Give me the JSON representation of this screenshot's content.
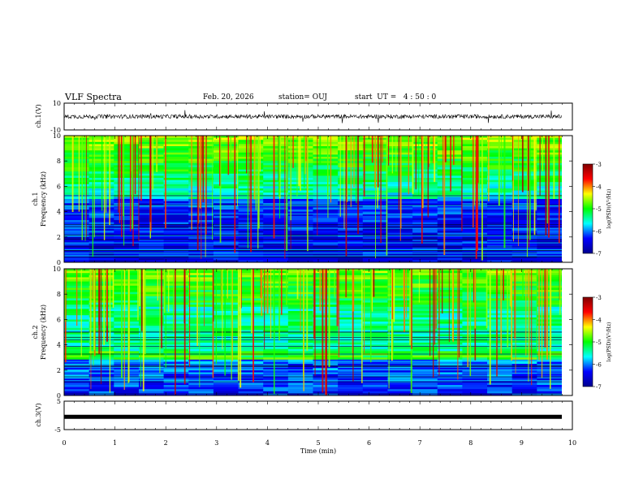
{
  "header": {
    "title": "VLF Spectra",
    "date": "Feb. 20, 2026",
    "station": "station= OUJ",
    "start": "start  UT =   4 : 50 : 0"
  },
  "chart_data": [
    {
      "type": "line",
      "name": "ch.1(V) waveform",
      "ylabel": "ch.1(V)",
      "ylim": [
        -10,
        10
      ],
      "yticks": [
        "10",
        "-10"
      ],
      "description_values": {
        "baseline": 0,
        "noise_amplitude": 1.5
      }
    },
    {
      "type": "heatmap",
      "name": "ch.1 spectrogram",
      "ylabel_top": "ch.1",
      "ylabel": "Frequency  (kHz)",
      "ylim": [
        0,
        10
      ],
      "yticks": [
        "0",
        "2",
        "4",
        "6",
        "8",
        "10"
      ],
      "colorbar": {
        "label": "log(PSD)(V²/Hz)",
        "range": [
          -7,
          -3
        ],
        "ticks": [
          "-3",
          "-4",
          "-5",
          "-6",
          "-7"
        ]
      }
    },
    {
      "type": "heatmap",
      "name": "ch.2 spectrogram",
      "ylabel_top": "ch.2",
      "ylabel": "Frequency  (kHz)",
      "ylim": [
        0,
        10
      ],
      "yticks": [
        "0",
        "2",
        "4",
        "6",
        "8",
        "10"
      ],
      "colorbar": {
        "label": "log(PSD)(V²/Hz)",
        "range": [
          -7,
          -3
        ],
        "ticks": [
          "-3",
          "-4",
          "-5",
          "-6",
          "-7"
        ]
      }
    },
    {
      "type": "line",
      "name": "ch.3(V)",
      "ylabel": "ch.3(V)",
      "ylim": [
        -5,
        5
      ],
      "yticks": [
        "5",
        "-5"
      ],
      "description_values": {
        "constant_level": -0.5
      }
    }
  ],
  "xaxis": {
    "label": "Time  (min)",
    "range": [
      0,
      10
    ],
    "ticks": [
      "0",
      "1",
      "2",
      "3",
      "4",
      "5",
      "6",
      "7",
      "8",
      "9",
      "10"
    ]
  },
  "colors": {
    "scale": [
      "#00008f",
      "#0000ff",
      "#00ffff",
      "#00ff00",
      "#ffff00",
      "#ff0000",
      "#800000"
    ]
  }
}
